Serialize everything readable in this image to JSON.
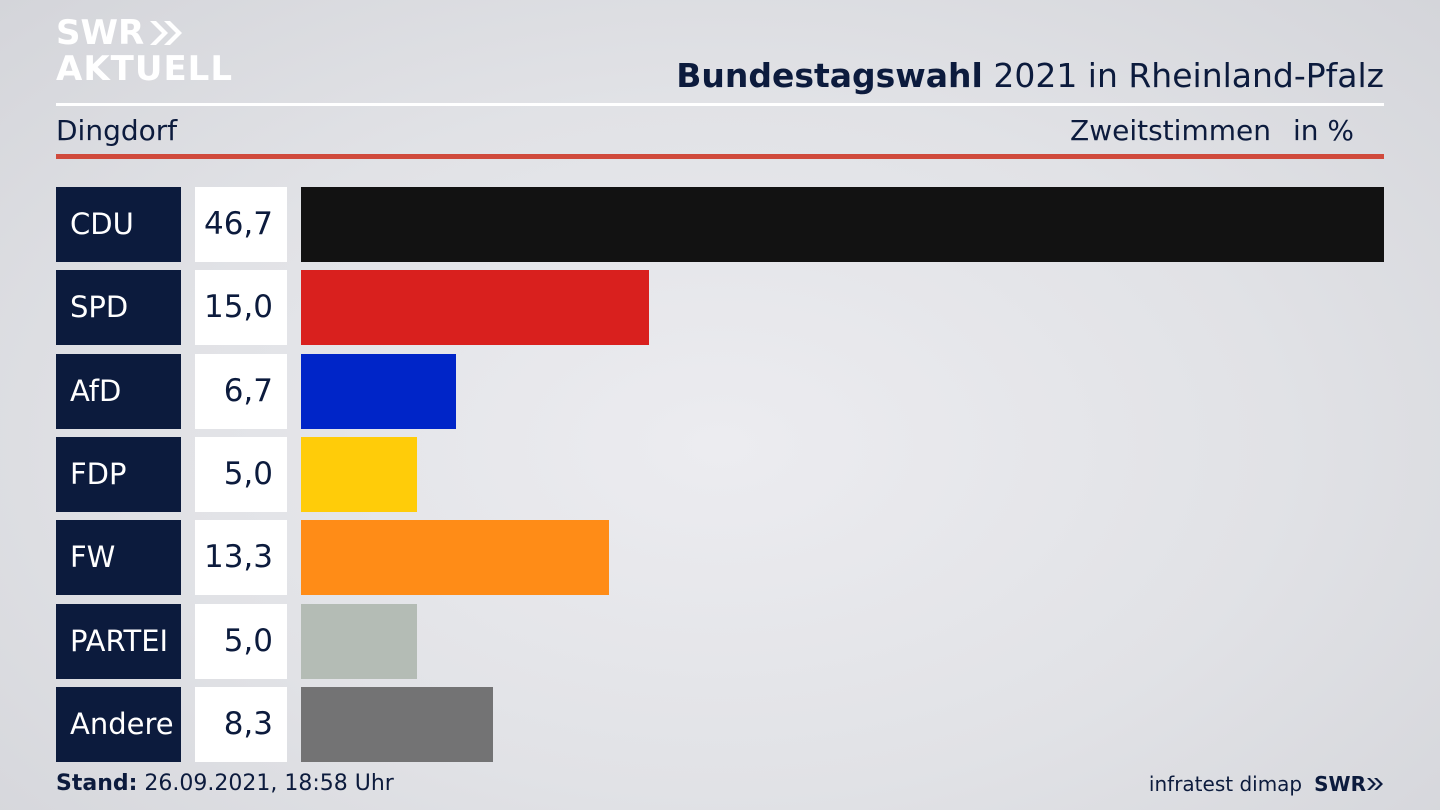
{
  "brand": {
    "line1": "SWR",
    "line2": "AKTUELL"
  },
  "header": {
    "title_bold": "Bundestagswahl",
    "title_rest": " 2021 in Rheinland-Pfalz"
  },
  "subheader": {
    "location": "Dingdorf",
    "measure": "Zweitstimmen",
    "unit": "in %"
  },
  "footer": {
    "stand_label": "Stand:",
    "stand_value": " 26.09.2021, 18:58 Uhr",
    "source": "infratest dimap",
    "brand": "SWR"
  },
  "chart_data": {
    "type": "bar",
    "orientation": "horizontal",
    "categories": [
      "CDU",
      "SPD",
      "AfD",
      "FDP",
      "FW",
      "PARTEI",
      "Andere"
    ],
    "values": [
      46.7,
      15.0,
      6.7,
      5.0,
      13.3,
      5.0,
      8.3
    ],
    "value_labels": [
      "46,7",
      "15,0",
      "6,7",
      "5,0",
      "13,3",
      "5,0",
      "8,3"
    ],
    "colors": [
      "#121212",
      "#d9201e",
      "#0025c8",
      "#ffcc09",
      "#ff8c17",
      "#b4bcb5",
      "#737374"
    ],
    "xlim": [
      0,
      46.7
    ]
  }
}
